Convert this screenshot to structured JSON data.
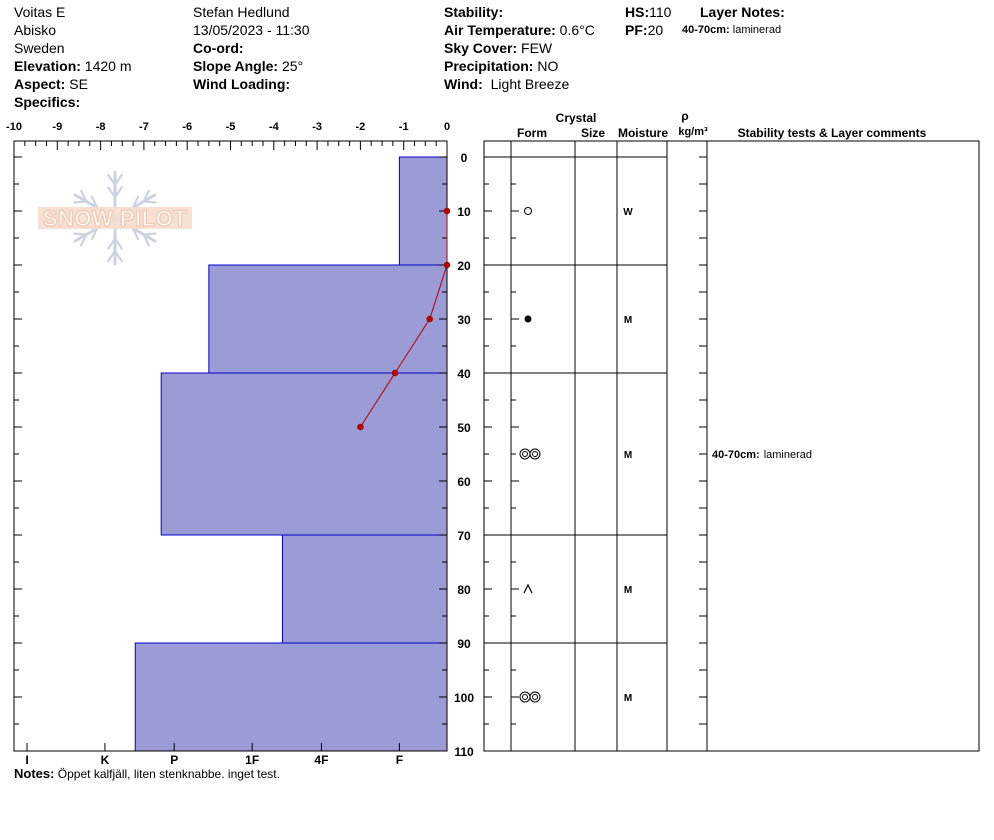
{
  "header": {
    "location": "Voitas E",
    "region": "Abisko",
    "country": "Sweden",
    "elevation_label": "Elevation:",
    "elevation": "1420 m",
    "aspect_label": "Aspect:",
    "aspect": "SE",
    "specifics_label": "Specifics:",
    "observer": "Stefan Hedlund",
    "datetime": "13/05/2023 - 11:30",
    "coord_label": "Co-ord:",
    "slope_label": "Slope Angle:",
    "slope": "25°",
    "wind_loading_label": "Wind Loading:",
    "stability_label": "Stability:",
    "air_temp_label": "Air Temperature:",
    "air_temp": "0.6°C",
    "sky_label": "Sky Cover:",
    "sky": "FEW",
    "precip_label": "Precipitation:",
    "precip": "NO",
    "wind_label": "Wind:",
    "wind": "Light Breeze",
    "hs_label": "HS:",
    "hs": "110",
    "pf_label": "PF:",
    "pf": "20",
    "layer_notes_label": "Layer Notes:",
    "layer_note_range": "40-70cm:",
    "layer_note_text": "laminerad"
  },
  "logo": {
    "text": "SNOW PILOT"
  },
  "table_headers": {
    "crystal": "Crystal",
    "form": "Form",
    "size": "Size",
    "moisture": "Moisture",
    "rho": "ρ",
    "density_unit": "kg/m³",
    "comments": "Stability tests & Layer comments"
  },
  "notes": {
    "label": "Notes:",
    "text": "Öppet kalfjäll, liten stenknabbe. inget test."
  },
  "colors": {
    "hardness_fill": "#9b9bd6",
    "hardness_stroke": "#0000cc",
    "temp_line": "#b00000",
    "temp_point": "#c00000"
  },
  "chart_data": {
    "type": "snow-profile",
    "depth_range": [
      0,
      110
    ],
    "depth_ticks": [
      "0",
      "10",
      "20",
      "30",
      "40",
      "50",
      "60",
      "70",
      "80",
      "90",
      "100",
      "110"
    ],
    "depth_tick_values": [
      0,
      10,
      20,
      30,
      40,
      50,
      60,
      70,
      80,
      90,
      100,
      110
    ],
    "temp_axis_ticks": [
      "-10",
      "-9",
      "-8",
      "-7",
      "-6",
      "-5",
      "-4",
      "-3",
      "-2",
      "-1",
      "0"
    ],
    "temp_axis_values": [
      -10,
      -9,
      -8,
      -7,
      -6,
      -5,
      -4,
      -3,
      -2,
      -1,
      0
    ],
    "hardness_ticks": [
      "I",
      "K",
      "P",
      "1F",
      "4F",
      "F"
    ],
    "hardness_tick_temps": [
      -9.7,
      -7.9,
      -6.3,
      -4.5,
      -2.9,
      -1.1
    ],
    "temperature_profile": [
      {
        "depth": 10,
        "temp": 0
      },
      {
        "depth": 20,
        "temp": 0
      },
      {
        "depth": 30,
        "temp": -0.4
      },
      {
        "depth": 40,
        "temp": -1.2
      },
      {
        "depth": 50,
        "temp": -2.0
      }
    ],
    "layers": [
      {
        "top": 0,
        "bottom": 20,
        "hardness_temp": -1.1,
        "form_icon": "circle-open",
        "form_depth": 10,
        "moisture": "W",
        "moisture_depth": 10
      },
      {
        "top": 20,
        "bottom": 40,
        "hardness_temp": -5.5,
        "form_icon": "circle-filled",
        "form_depth": 30,
        "moisture": "M",
        "moisture_depth": 30
      },
      {
        "top": 40,
        "bottom": 70,
        "hardness_temp": -6.6,
        "form_icon": "double-ring",
        "form_depth": 55,
        "moisture": "M",
        "moisture_depth": 55
      },
      {
        "top": 70,
        "bottom": 90,
        "hardness_temp": -3.8,
        "form_icon": "caret",
        "form_depth": 80,
        "moisture": "M",
        "moisture_depth": 80
      },
      {
        "top": 90,
        "bottom": 110,
        "hardness_temp": -7.2,
        "form_icon": "double-ring",
        "form_depth": 100,
        "moisture": "M",
        "moisture_depth": 100
      }
    ],
    "layer_comments": [
      {
        "depth": 55,
        "range": "40-70cm:",
        "text": "laminerad"
      }
    ]
  }
}
